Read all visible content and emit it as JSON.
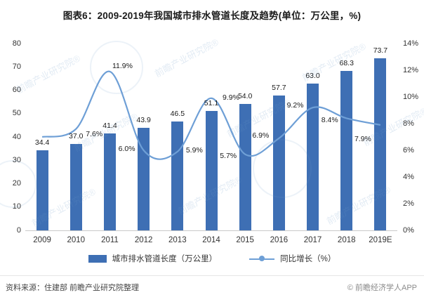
{
  "title": "图表6：2009-2019年我国城市排水管道长度及趋势(单位：万公里，%)",
  "watermark": {
    "text": "前瞻产业研究院",
    "reg": "®"
  },
  "footer": {
    "source": "资料来源：住建部 前瞻产业研究院整理",
    "copyright": "© 前瞻经济学人APP"
  },
  "colors": {
    "bar": "#3e6fb4",
    "line": "#6e9fd6",
    "label": "#1a1a1a",
    "axis_text": "#333333"
  },
  "chart_data": {
    "type": "bar+line",
    "title": "图表6：2009-2019年我国城市排水管道长度及趋势(单位：万公里，%)",
    "categories": [
      "2009",
      "2010",
      "2011",
      "2012",
      "2013",
      "2014",
      "2015",
      "2016",
      "2017",
      "2018",
      "2019E"
    ],
    "series": [
      {
        "name": "城市排水管道长度（万公里）",
        "type": "bar",
        "axis": "left",
        "values": [
          34.4,
          37.0,
          41.4,
          43.9,
          46.5,
          51.1,
          54.0,
          57.7,
          63.0,
          68.3,
          73.7
        ],
        "labels": [
          "34.4",
          "37.0",
          "41.4",
          "43.9",
          "46.5",
          "51.1",
          "54.0",
          "57.7",
          "63.0",
          "68.3",
          "73.7"
        ]
      },
      {
        "name": "同比增长（%）",
        "type": "line",
        "axis": "right",
        "values": [
          7.0,
          7.6,
          11.9,
          6.0,
          5.9,
          9.9,
          5.7,
          6.9,
          9.2,
          8.4,
          7.9
        ],
        "labels": [
          "",
          "7.6%",
          "11.9%",
          "6.0%",
          "5.9%",
          "9.9%",
          "5.7%",
          "6.9%",
          "9.2%",
          "8.4%",
          "7.9%"
        ]
      }
    ],
    "left_axis": {
      "min": 0,
      "max": 80,
      "step": 10
    },
    "right_axis": {
      "min": 0,
      "max": 14,
      "step": 2,
      "suffix": "%"
    },
    "grid": false,
    "legend_position": "bottom"
  }
}
